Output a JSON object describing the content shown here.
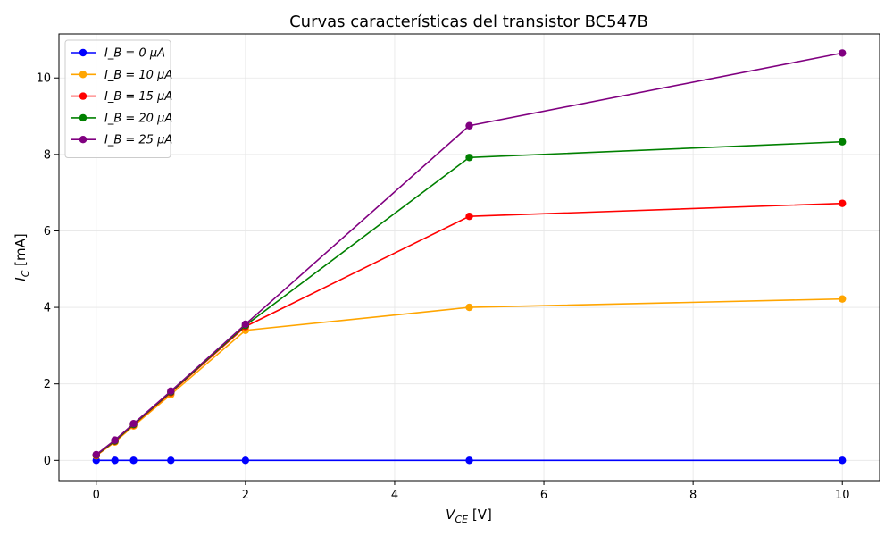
{
  "chart_data": {
    "type": "line",
    "title": "Curvas características del transistor BC547B",
    "xlabel": "V_CE [V]",
    "ylabel": "I_C [mA]",
    "x_ticks": [
      "0",
      "2",
      "4",
      "6",
      "8",
      "10"
    ],
    "y_ticks": [
      "0",
      "2",
      "4",
      "6",
      "8",
      "10"
    ],
    "xlim": [
      -0.5,
      10.5
    ],
    "ylim": [
      -0.53,
      11.15
    ],
    "grid": true,
    "legend_position": "top-left",
    "x": [
      0,
      0.25,
      0.5,
      1,
      2,
      5,
      10
    ],
    "series": [
      {
        "name": "I_B = 0 μA",
        "color": "#0000ff",
        "values": [
          0,
          0,
          0,
          0,
          0,
          0,
          0
        ]
      },
      {
        "name": "I_B = 10 μA",
        "color": "#ffa500",
        "values": [
          0.12,
          0.48,
          0.9,
          1.72,
          3.4,
          4.0,
          4.22
        ]
      },
      {
        "name": "I_B = 15 μA",
        "color": "#ff0000",
        "values": [
          0.13,
          0.5,
          0.93,
          1.77,
          3.5,
          6.38,
          6.72
        ]
      },
      {
        "name": "I_B = 20 μA",
        "color": "#008000",
        "values": [
          0.14,
          0.51,
          0.94,
          1.79,
          3.53,
          7.92,
          8.33
        ]
      },
      {
        "name": "I_B = 25 μA",
        "color": "#800080",
        "values": [
          0.15,
          0.53,
          0.96,
          1.81,
          3.56,
          8.75,
          10.65
        ]
      }
    ]
  }
}
